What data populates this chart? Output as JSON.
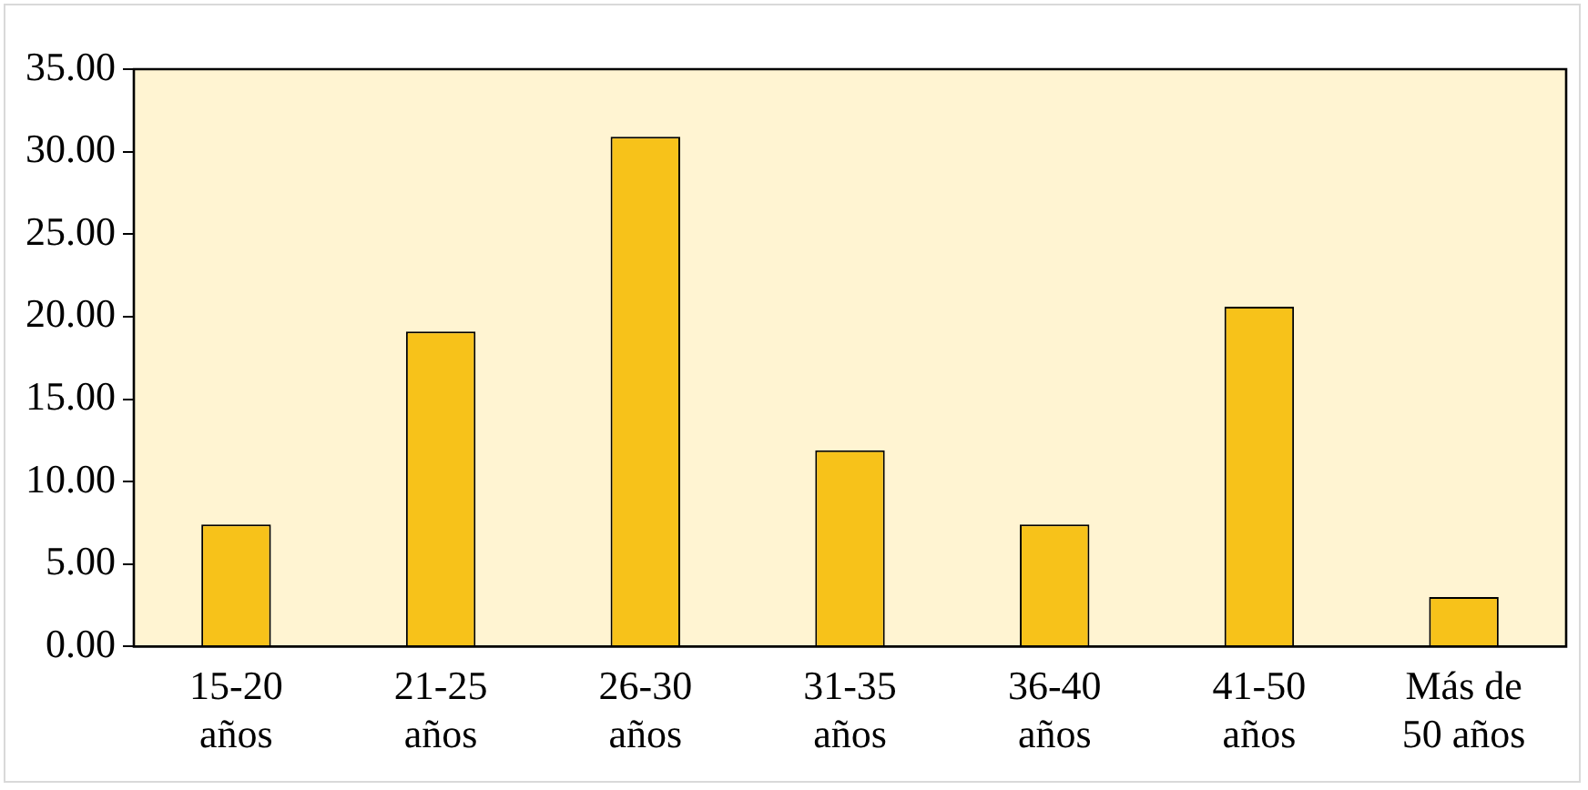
{
  "chart_data": {
    "type": "bar",
    "categories": [
      "15-20\naños",
      "21-25\naños",
      "26-30\naños",
      "31-35\naños",
      "36-40\naños",
      "41-50\naños",
      "Más de\n50 años"
    ],
    "values": [
      7.4,
      19.1,
      30.9,
      11.9,
      7.4,
      20.6,
      3.0
    ],
    "color": "#f7c21a",
    "ylim": [
      0,
      35
    ],
    "yticks": [
      {
        "value": 0,
        "label": "0.00"
      },
      {
        "value": 5,
        "label": "5.00"
      },
      {
        "value": 10,
        "label": "10.00"
      },
      {
        "value": 15,
        "label": "15.00"
      },
      {
        "value": 20,
        "label": "20.00"
      },
      {
        "value": 25,
        "label": "25.00"
      },
      {
        "value": 30,
        "label": "30.00"
      },
      {
        "value": 35,
        "label": "35.00"
      }
    ],
    "grid": false,
    "legend": false
  }
}
